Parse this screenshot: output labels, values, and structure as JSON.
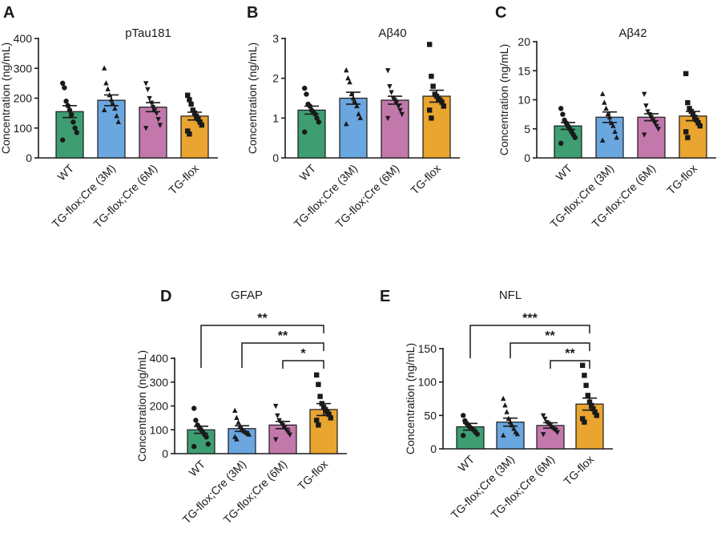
{
  "colors": {
    "wt": "#3e9e72",
    "cre3m": "#6aa6e0",
    "cre6m": "#c378ac",
    "tgflox": "#e9a52f",
    "ink": "#1a1a1a"
  },
  "chart_data": [
    {
      "panel": "A",
      "type": "bar",
      "title": "pTau181",
      "ylabel": "Concentration (ng/mL)",
      "ylim": [
        0,
        400
      ],
      "yticks": [
        0,
        100,
        200,
        300,
        400
      ],
      "categories": [
        "WT",
        "TG-flox;Cre (3M)",
        "TG-flox;Cre (6M)",
        "TG-flox"
      ],
      "marker_shapes": [
        "circle",
        "triangle-up",
        "triangle-down",
        "square"
      ],
      "values": [
        155,
        193,
        170,
        140
      ],
      "sem": [
        20,
        18,
        15,
        13
      ],
      "points": [
        [
          250,
          235,
          190,
          175,
          160,
          145,
          120,
          100,
          85,
          60
        ],
        [
          300,
          250,
          230,
          210,
          195,
          180,
          165,
          140,
          120,
          160
        ],
        [
          250,
          230,
          200,
          185,
          170,
          160,
          150,
          130,
          110,
          100
        ],
        [
          210,
          195,
          180,
          160,
          150,
          140,
          130,
          120,
          110,
          90,
          80
        ]
      ],
      "significance": []
    },
    {
      "panel": "B",
      "type": "bar",
      "title": "Aβ40",
      "ylabel": "Concentration (ng/mL)",
      "ylim": [
        0,
        3
      ],
      "yticks": [
        0,
        1,
        2,
        3
      ],
      "categories": [
        "WT",
        "TG-flox;Cre (3M)",
        "TG-flox;Cre (6M)",
        "TG-flox"
      ],
      "marker_shapes": [
        "circle",
        "triangle-up",
        "triangle-down",
        "square"
      ],
      "values": [
        1.2,
        1.5,
        1.45,
        1.55
      ],
      "sem": [
        0.1,
        0.15,
        0.1,
        0.15
      ],
      "points": [
        [
          1.75,
          1.6,
          1.35,
          1.3,
          1.2,
          1.15,
          1.1,
          1.0,
          0.9,
          0.65
        ],
        [
          2.2,
          2.0,
          1.9,
          1.6,
          1.5,
          1.4,
          1.3,
          1.1,
          1.0,
          0.85
        ],
        [
          2.2,
          1.8,
          1.65,
          1.5,
          1.45,
          1.4,
          1.3,
          1.2,
          1.1,
          1.0
        ],
        [
          2.85,
          2.05,
          1.8,
          1.6,
          1.55,
          1.5,
          1.45,
          1.4,
          1.3,
          1.2,
          1.0
        ]
      ],
      "significance": []
    },
    {
      "panel": "C",
      "type": "bar",
      "title": "Aβ42",
      "ylabel": "Concentration (ng/mL)",
      "ylim": [
        0,
        20
      ],
      "yticks": [
        0,
        5,
        10,
        15,
        20
      ],
      "categories": [
        "WT",
        "TG-flox;Cre (3M)",
        "TG-flox;Cre (6M)",
        "TG-flox"
      ],
      "marker_shapes": [
        "circle",
        "triangle-up",
        "triangle-down",
        "square"
      ],
      "values": [
        5.5,
        7.0,
        7.0,
        7.2
      ],
      "sem": [
        0.6,
        0.9,
        0.6,
        0.8
      ],
      "points": [
        [
          8.5,
          7.5,
          6.5,
          6.0,
          5.5,
          5.0,
          4.5,
          4.0,
          3.5,
          2.5
        ],
        [
          11.0,
          9.5,
          8.5,
          7.5,
          7.0,
          6.0,
          5.5,
          4.5,
          3.5,
          3.0
        ],
        [
          11.0,
          9.0,
          8.0,
          7.5,
          7.0,
          6.5,
          6.0,
          5.5,
          5.0,
          4.0
        ],
        [
          14.5,
          9.5,
          8.5,
          8.0,
          7.5,
          7.0,
          6.5,
          6.0,
          5.5,
          4.5,
          3.5
        ]
      ],
      "significance": []
    },
    {
      "panel": "D",
      "type": "bar",
      "title": "GFAP",
      "ylabel": "Concentration (ng/mL)",
      "ylim": [
        0,
        400
      ],
      "yticks": [
        0,
        100,
        200,
        300,
        400
      ],
      "categories": [
        "WT",
        "TG-flox;Cre (3M)",
        "TG-flox;Cre (6M)",
        "TG-flox"
      ],
      "marker_shapes": [
        "circle",
        "triangle-up",
        "triangle-down",
        "square"
      ],
      "values": [
        100,
        105,
        120,
        185
      ],
      "sem": [
        15,
        12,
        15,
        25
      ],
      "points": [
        [
          190,
          140,
          120,
          110,
          100,
          90,
          80,
          70,
          40,
          30
        ],
        [
          180,
          150,
          130,
          115,
          105,
          95,
          90,
          85,
          80,
          70,
          60
        ],
        [
          200,
          160,
          140,
          130,
          120,
          110,
          100,
          90,
          80,
          60
        ],
        [
          330,
          290,
          240,
          210,
          195,
          185,
          175,
          165,
          150,
          140,
          120
        ]
      ],
      "significance": [
        {
          "from": 0,
          "to": 3,
          "label": "**"
        },
        {
          "from": 1,
          "to": 3,
          "label": "**"
        },
        {
          "from": 2,
          "to": 3,
          "label": "*"
        }
      ]
    },
    {
      "panel": "E",
      "type": "bar",
      "title": "NFL",
      "ylabel": "Concentration (ng/mL)",
      "ylim": [
        0,
        150
      ],
      "yticks": [
        0,
        50,
        100,
        150
      ],
      "categories": [
        "WT",
        "TG-flox;Cre (3M)",
        "TG-flox;Cre (6M)",
        "TG-flox"
      ],
      "marker_shapes": [
        "circle",
        "triangle-up",
        "triangle-down",
        "square"
      ],
      "values": [
        33,
        40,
        35,
        67
      ],
      "sem": [
        5,
        6,
        4,
        9
      ],
      "points": [
        [
          50,
          42,
          38,
          35,
          32,
          30,
          28,
          25,
          22,
          20
        ],
        [
          75,
          65,
          55,
          45,
          40,
          35,
          30,
          25,
          22,
          20
        ],
        [
          50,
          45,
          40,
          38,
          35,
          32,
          30,
          28,
          25,
          22
        ],
        [
          125,
          110,
          95,
          80,
          70,
          65,
          60,
          55,
          50,
          45,
          40
        ]
      ],
      "significance": [
        {
          "from": 0,
          "to": 3,
          "label": "***"
        },
        {
          "from": 1,
          "to": 3,
          "label": "**"
        },
        {
          "from": 2,
          "to": 3,
          "label": "**"
        }
      ]
    }
  ]
}
